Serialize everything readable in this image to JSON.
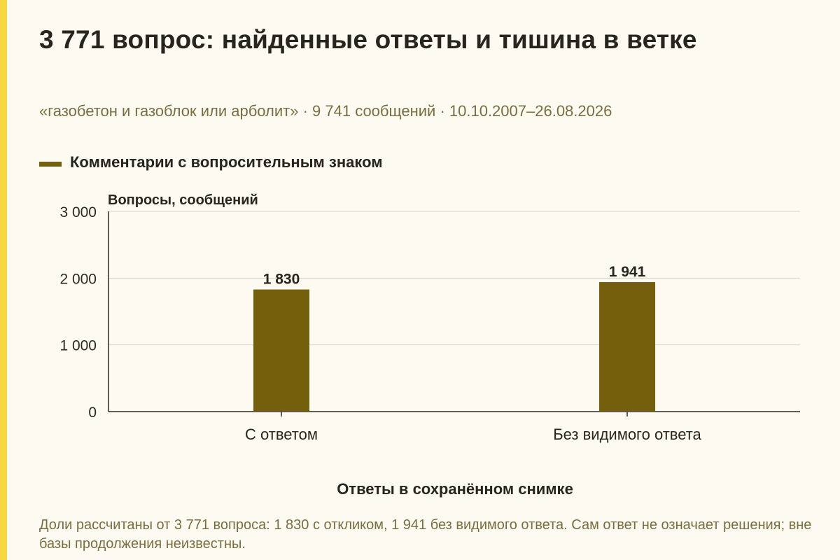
{
  "title": "3 771 вопрос: найденные ответы и тишина в ветке",
  "subtitle": "«газобетон и газоблок или арболит» · 9 741 сообщений · 10.10.2007–26.08.2026",
  "legend": {
    "label": "Комментарии с вопросительным знаком"
  },
  "footnote": "Доли рассчитаны от 3 771 вопроса: 1 830 с откликом, 1 941 без видимого ответа. Сам ответ не означает решения; вне базы продолжения неизвестны.",
  "colors": {
    "background": "#fdfbf1",
    "accent_stripe": "#f7d842",
    "bar": "#74600c",
    "subtitle_text": "#7a6d3f",
    "gridline": "#d9d5c5"
  },
  "chart_data": {
    "type": "bar",
    "categories": [
      "С ответом",
      "Без видимого ответа"
    ],
    "series": [
      {
        "name": "Комментарии с вопросительным знаком",
        "values": [
          1830,
          1941
        ]
      }
    ],
    "data_labels": [
      "1 830",
      "1 941"
    ],
    "ylabel": "Вопросы, сообщений",
    "xlabel": "Ответы в сохранённом снимке",
    "ylim": [
      0,
      3000
    ],
    "yticks": [
      0,
      1000,
      2000,
      3000
    ],
    "ytick_labels": [
      "0",
      "1 000",
      "2 000",
      "3 000"
    ],
    "grid": true,
    "legend_position": "top-left"
  }
}
